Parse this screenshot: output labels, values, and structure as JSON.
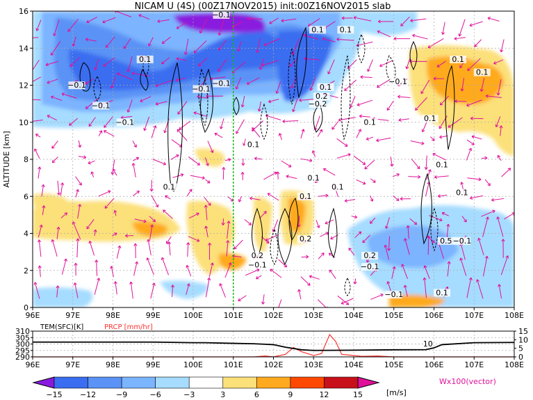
{
  "title": "NICAM U (4S) (00Z17NOV2015) init:00Z16NOV2015 slab",
  "colors": {
    "vector": "#e0109a",
    "precip_line": "#ff3030",
    "green_marker": "#18b818",
    "temperature_line": "#000000",
    "precip_label": "#ff3030"
  },
  "chart_data": [
    {
      "type": "heatmap",
      "title": "NICAM U (4S) (00Z17NOV2015) init:00Z16NOV2015 slab",
      "ylabel": "ALTITUDE [km]",
      "xlabel": "",
      "xlim": [
        96,
        108
      ],
      "ylim": [
        0,
        16
      ],
      "x_ticks": [
        "96E",
        "97E",
        "98E",
        "99E",
        "100E",
        "101E",
        "102E",
        "103E",
        "104E",
        "105E",
        "106E",
        "107E",
        "108E"
      ],
      "y_ticks": [
        "0",
        "2",
        "4",
        "6",
        "8",
        "10",
        "12",
        "14",
        "16"
      ],
      "grid": true,
      "vertical_marker_x": 101.0,
      "contour_labels": [
        {
          "text": "−0.1",
          "x": 100.7,
          "y": 15.7
        },
        {
          "text": "0.1",
          "x": 103.1,
          "y": 14.9
        },
        {
          "text": "0.1",
          "x": 103.8,
          "y": 14.9
        },
        {
          "text": "0.1",
          "x": 98.8,
          "y": 13.3
        },
        {
          "text": "−0.1",
          "x": 97.1,
          "y": 11.9
        },
        {
          "text": "−0.1",
          "x": 97.7,
          "y": 10.8
        },
        {
          "text": "−0.1",
          "x": 100.2,
          "y": 11.7
        },
        {
          "text": "−0.1",
          "x": 100.7,
          "y": 12.0
        },
        {
          "text": "−0.1",
          "x": 98.3,
          "y": 9.9
        },
        {
          "text": "0.1",
          "x": 106.6,
          "y": 13.3
        },
        {
          "text": "0.1",
          "x": 107.2,
          "y": 12.6
        },
        {
          "text": "−0.1",
          "x": 105.1,
          "y": 12.1
        },
        {
          "text": "0.1",
          "x": 103.3,
          "y": 11.8
        },
        {
          "text": "0.2",
          "x": 103.2,
          "y": 11.3
        },
        {
          "text": "−0.2",
          "x": 103.1,
          "y": 10.9
        },
        {
          "text": "0.1",
          "x": 104.4,
          "y": 9.9
        },
        {
          "text": "0.1",
          "x": 105.9,
          "y": 10.1
        },
        {
          "text": "0.1",
          "x": 101.5,
          "y": 8.7
        },
        {
          "text": "0.1",
          "x": 99.4,
          "y": 6.4
        },
        {
          "text": "0.1",
          "x": 106.2,
          "y": 7.6
        },
        {
          "text": "0.1",
          "x": 103.0,
          "y": 6.9
        },
        {
          "text": "0.1",
          "x": 103.6,
          "y": 6.4
        },
        {
          "text": "0.1",
          "x": 102.8,
          "y": 5.9
        },
        {
          "text": "0.1",
          "x": 106.7,
          "y": 6.1
        },
        {
          "text": "0.2",
          "x": 102.8,
          "y": 3.6
        },
        {
          "text": "0.2",
          "x": 101.6,
          "y": 2.7
        },
        {
          "text": "−0.1",
          "x": 101.6,
          "y": 2.2
        },
        {
          "text": "0.2",
          "x": 104.4,
          "y": 2.7
        },
        {
          "text": "−0.1",
          "x": 104.4,
          "y": 2.1
        },
        {
          "text": "0.5",
          "x": 106.3,
          "y": 3.5
        },
        {
          "text": "−0.1",
          "x": 106.7,
          "y": 3.5
        },
        {
          "text": "−0.1",
          "x": 105.0,
          "y": 0.6
        },
        {
          "text": "0.1",
          "x": 106.2,
          "y": 0.7
        }
      ]
    },
    {
      "type": "line",
      "xlim": [
        96,
        108
      ],
      "x_ticks": [
        "96E",
        "97E",
        "98E",
        "99E",
        "100E",
        "101E",
        "102E",
        "103E",
        "104E",
        "105E",
        "106E",
        "107E",
        "108E"
      ],
      "left_axis_label": "TEM(SFC)[K]",
      "left_ticks": [
        "310",
        "305",
        "300",
        "295",
        "290"
      ],
      "left_ylim": [
        290,
        310
      ],
      "right_axis_label": "PRCP [mm/hr]",
      "right_ticks": [
        "15",
        "10",
        "5",
        "0"
      ],
      "right_ylim": [
        0,
        15
      ],
      "series": [
        {
          "name": "TEM(SFC)[K]",
          "x": [
            96,
            99,
            100,
            100.3,
            101,
            101.5,
            102,
            102.3,
            102.7,
            103,
            104,
            105,
            105.8,
            106,
            106.2,
            107,
            108
          ],
          "values": [
            301.5,
            301.5,
            301,
            301,
            300.5,
            300.2,
            299.5,
            297.5,
            295.5,
            295,
            295.2,
            295.5,
            295.6,
            297,
            299.5,
            301,
            301.2
          ]
        },
        {
          "name": "PRCP [mm/hr]",
          "x": [
            96,
            101.5,
            101.8,
            102,
            102.3,
            102.5,
            102.7,
            103,
            103.2,
            103.4,
            103.55,
            103.7,
            103.9,
            104.2,
            104.6,
            105,
            106,
            108
          ],
          "values": [
            0,
            0,
            0.5,
            0,
            1.5,
            5.5,
            3,
            0.8,
            2,
            13,
            9,
            1.5,
            1,
            0.3,
            0.5,
            0,
            0,
            0
          ]
        }
      ],
      "annotations": [
        {
          "text": "10",
          "x": 105.9,
          "y": 300.3
        }
      ]
    }
  ],
  "colorbar": {
    "labels": [
      "−15",
      "−12",
      "−9",
      "−6",
      "−3",
      "3",
      "6",
      "9",
      "12",
      "15"
    ],
    "colors": [
      "#8a1adf",
      "#3a6df0",
      "#5a93f5",
      "#7bb4ff",
      "#a6dcff",
      "#ffffff",
      "#fce07a",
      "#ffaa1e",
      "#ff4800",
      "#c8101a",
      "#e0109a"
    ],
    "unit": "[m/s]",
    "vector_label": "Wx100(vector)"
  }
}
